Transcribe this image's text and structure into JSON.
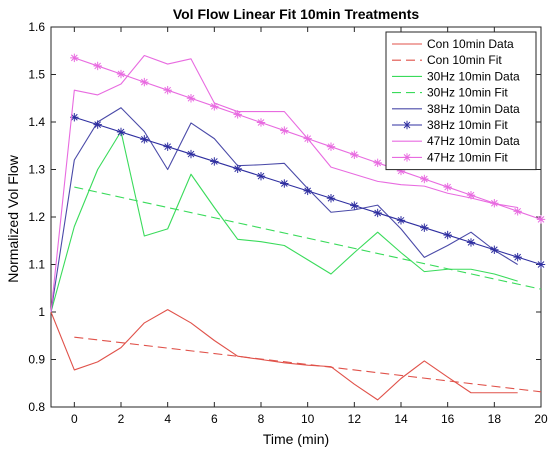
{
  "chart_data": {
    "type": "line",
    "title": "Vol Flow Linear Fit 10min Treatments",
    "xlabel": "Time (min)",
    "ylabel": "Normalized Vol Flow",
    "xlim": [
      -1,
      20
    ],
    "ylim": [
      0.8,
      1.6
    ],
    "xticks": [
      0,
      2,
      4,
      6,
      8,
      10,
      12,
      14,
      16,
      18,
      20
    ],
    "yticks": [
      0.8,
      0.9,
      1.0,
      1.1,
      1.2,
      1.3,
      1.4,
      1.5,
      1.6
    ],
    "ytick_labels": [
      "0.8",
      "0.9",
      "1",
      "1.1",
      "1.2",
      "1.3",
      "1.4",
      "1.5",
      "1.6"
    ],
    "grid": false,
    "legend_position": "top-right",
    "series": [
      {
        "name": "Con 10min Data",
        "color": "#e0524a",
        "style": "solid",
        "marker": "none",
        "x": [
          -1,
          0,
          1,
          2,
          3,
          4,
          5,
          6,
          7,
          8,
          9,
          10,
          11,
          12,
          13,
          14,
          15,
          16,
          17,
          18,
          19
        ],
        "y": [
          1.0,
          0.878,
          0.895,
          0.925,
          0.977,
          1.005,
          0.977,
          0.94,
          0.907,
          0.9,
          0.893,
          0.888,
          0.885,
          0.848,
          0.815,
          0.86,
          0.897,
          0.863,
          0.83,
          0.83,
          0.83
        ]
      },
      {
        "name": "Con 10min Fit",
        "color": "#e0524a",
        "style": "dashed",
        "marker": "none",
        "x": [
          0,
          20
        ],
        "y": [
          0.947,
          0.832
        ]
      },
      {
        "name": "30Hz 10min Data",
        "color": "#3adb5b",
        "style": "solid",
        "marker": "none",
        "x": [
          -1,
          0,
          1,
          2,
          3,
          4,
          5,
          6,
          7,
          8,
          9,
          10,
          11,
          12,
          13,
          14,
          15,
          16,
          17,
          18,
          19
        ],
        "y": [
          1.0,
          1.18,
          1.3,
          1.38,
          1.16,
          1.175,
          1.29,
          1.22,
          1.153,
          1.148,
          1.14,
          1.11,
          1.08,
          1.125,
          1.168,
          1.125,
          1.085,
          1.09,
          1.09,
          1.08,
          1.065
        ]
      },
      {
        "name": "30Hz 10min Fit",
        "color": "#3adb5b",
        "style": "dashed",
        "marker": "none",
        "x": [
          0,
          20
        ],
        "y": [
          1.263,
          1.048
        ]
      },
      {
        "name": "38Hz 10min Data",
        "color": "#4a4aa8",
        "style": "solid",
        "marker": "none",
        "x": [
          -1,
          0,
          1,
          2,
          3,
          4,
          5,
          6,
          7,
          8,
          9,
          10,
          11,
          12,
          13,
          14,
          15,
          16,
          17,
          18,
          19
        ],
        "y": [
          1.0,
          1.32,
          1.4,
          1.43,
          1.38,
          1.3,
          1.398,
          1.365,
          1.308,
          1.31,
          1.313,
          1.26,
          1.21,
          1.215,
          1.225,
          1.175,
          1.115,
          1.14,
          1.168,
          1.13,
          1.1
        ]
      },
      {
        "name": "38Hz 10min Fit",
        "color": "#2f2fa0",
        "style": "solid",
        "marker": "asterisk",
        "x": [
          0,
          1,
          2,
          3,
          4,
          5,
          6,
          7,
          8,
          9,
          10,
          11,
          12,
          13,
          14,
          15,
          16,
          17,
          18,
          19,
          20
        ],
        "y": [
          1.41,
          1.3945,
          1.379,
          1.3635,
          1.348,
          1.3325,
          1.317,
          1.3015,
          1.286,
          1.2705,
          1.255,
          1.2395,
          1.224,
          1.2085,
          1.193,
          1.1775,
          1.162,
          1.1465,
          1.131,
          1.1155,
          1.1
        ]
      },
      {
        "name": "47Hz 10min Data",
        "color": "#e86be0",
        "style": "solid",
        "marker": "none",
        "x": [
          -1,
          0,
          1,
          2,
          3,
          4,
          5,
          6,
          7,
          8,
          9,
          10,
          11,
          12,
          13,
          14,
          15,
          16,
          17,
          18,
          19
        ],
        "y": [
          1.0,
          1.467,
          1.457,
          1.48,
          1.54,
          1.522,
          1.533,
          1.44,
          1.422,
          1.422,
          1.422,
          1.365,
          1.305,
          1.29,
          1.275,
          1.268,
          1.265,
          1.25,
          1.24,
          1.228,
          1.22
        ]
      },
      {
        "name": "47Hz 10min Fit",
        "color": "#e86be0",
        "style": "solid",
        "marker": "asterisk",
        "x": [
          0,
          1,
          2,
          3,
          4,
          5,
          6,
          7,
          8,
          9,
          10,
          11,
          12,
          13,
          14,
          15,
          16,
          17,
          18,
          19,
          20
        ],
        "y": [
          1.535,
          1.518,
          1.501,
          1.484,
          1.467,
          1.45,
          1.433,
          1.416,
          1.399,
          1.382,
          1.365,
          1.348,
          1.331,
          1.314,
          1.297,
          1.28,
          1.263,
          1.246,
          1.229,
          1.212,
          1.195
        ]
      }
    ]
  }
}
